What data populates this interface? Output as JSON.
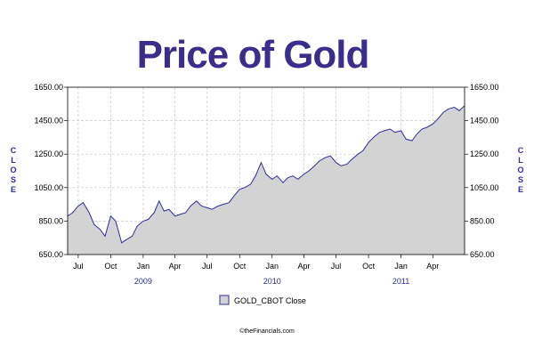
{
  "chart_data": {
    "type": "area",
    "title": "Price of Gold",
    "ylabel": "CLOSE",
    "ylim": [
      650,
      1650
    ],
    "y_ticks": [
      "650.00",
      "850.00",
      "1050.00",
      "1250.00",
      "1450.00",
      "1650.00"
    ],
    "y_tick_values": [
      650,
      850,
      1050,
      1250,
      1450,
      1650
    ],
    "x_range": [
      "2008-06-01",
      "2011-06-30"
    ],
    "x_tick_labels": [
      {
        "label": "Jul",
        "date": "2008-07-01"
      },
      {
        "label": "Oct",
        "date": "2008-10-01"
      },
      {
        "label": "Jan",
        "date": "2009-01-01"
      },
      {
        "label": "Apr",
        "date": "2009-04-01"
      },
      {
        "label": "Jul",
        "date": "2009-07-01"
      },
      {
        "label": "Oct",
        "date": "2009-10-01"
      },
      {
        "label": "Jan",
        "date": "2010-01-01"
      },
      {
        "label": "Apr",
        "date": "2010-04-01"
      },
      {
        "label": "Jul",
        "date": "2010-07-01"
      },
      {
        "label": "Oct",
        "date": "2010-10-01"
      },
      {
        "label": "Jan",
        "date": "2011-01-01"
      },
      {
        "label": "Apr",
        "date": "2011-04-01"
      }
    ],
    "year_labels": [
      {
        "label": "2009",
        "date": "2009-01-01"
      },
      {
        "label": "2010",
        "date": "2010-01-01"
      },
      {
        "label": "2011",
        "date": "2011-01-01"
      }
    ],
    "grid": true,
    "legend_position": "bottom-center",
    "series": [
      {
        "name": "GOLD_CBOT Close",
        "x": [
          "2008-06-01",
          "2008-06-15",
          "2008-07-01",
          "2008-07-15",
          "2008-08-01",
          "2008-08-15",
          "2008-09-01",
          "2008-09-15",
          "2008-10-01",
          "2008-10-15",
          "2008-11-01",
          "2008-11-15",
          "2008-12-01",
          "2008-12-15",
          "2009-01-01",
          "2009-01-15",
          "2009-02-01",
          "2009-02-15",
          "2009-03-01",
          "2009-03-15",
          "2009-04-01",
          "2009-04-15",
          "2009-05-01",
          "2009-05-15",
          "2009-06-01",
          "2009-06-15",
          "2009-07-01",
          "2009-07-15",
          "2009-08-01",
          "2009-08-15",
          "2009-09-01",
          "2009-09-15",
          "2009-10-01",
          "2009-10-15",
          "2009-11-01",
          "2009-11-15",
          "2009-12-01",
          "2009-12-15",
          "2010-01-01",
          "2010-01-15",
          "2010-02-01",
          "2010-02-15",
          "2010-03-01",
          "2010-03-15",
          "2010-04-01",
          "2010-04-15",
          "2010-05-01",
          "2010-05-15",
          "2010-06-01",
          "2010-06-15",
          "2010-07-01",
          "2010-07-15",
          "2010-08-01",
          "2010-08-15",
          "2010-09-01",
          "2010-09-15",
          "2010-10-01",
          "2010-10-15",
          "2010-11-01",
          "2010-11-15",
          "2010-12-01",
          "2010-12-15",
          "2011-01-01",
          "2011-01-15",
          "2011-02-01",
          "2011-02-15",
          "2011-03-01",
          "2011-03-15",
          "2011-04-01",
          "2011-04-15",
          "2011-05-01",
          "2011-05-15",
          "2011-06-01",
          "2011-06-15",
          "2011-06-30"
        ],
        "values": [
          880,
          900,
          940,
          960,
          900,
          830,
          800,
          760,
          880,
          850,
          720,
          740,
          760,
          820,
          850,
          860,
          900,
          970,
          910,
          920,
          880,
          890,
          900,
          940,
          970,
          940,
          930,
          920,
          940,
          950,
          960,
          1000,
          1040,
          1050,
          1070,
          1120,
          1200,
          1130,
          1100,
          1120,
          1080,
          1110,
          1120,
          1100,
          1130,
          1150,
          1180,
          1210,
          1230,
          1240,
          1200,
          1180,
          1190,
          1220,
          1250,
          1270,
          1320,
          1350,
          1380,
          1390,
          1400,
          1380,
          1390,
          1340,
          1330,
          1370,
          1400,
          1410,
          1430,
          1460,
          1500,
          1520,
          1530,
          1510,
          1540
        ]
      }
    ]
  },
  "legend": {
    "label": "GOLD_CBOT Close"
  },
  "credit": "©theFinancials.com",
  "colors": {
    "title": "#3a2e8c",
    "line": "#2c2ca0",
    "fill": "#d3d3d3",
    "year": "#2c2ca0",
    "side_label": "#2c2ca0",
    "grid": "#c8c8c8"
  }
}
